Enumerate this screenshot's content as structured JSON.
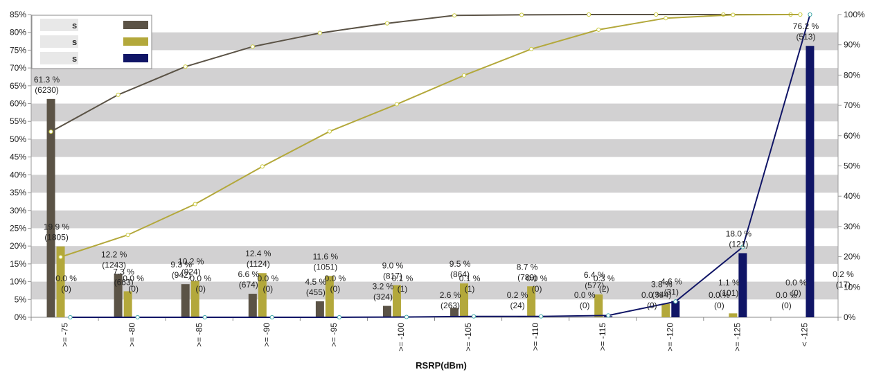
{
  "chart_data": {
    "type": "bar",
    "xlabel": "RSRP(dBm)",
    "ylabel": "",
    "ylim": [
      0,
      85
    ],
    "y_ticks": [
      "0%",
      "5%",
      "10%",
      "15%",
      "20%",
      "25%",
      "30%",
      "35%",
      "40%",
      "45%",
      "50%",
      "55%",
      "60%",
      "65%",
      "70%",
      "75%",
      "80%",
      "85%"
    ],
    "y2lim": [
      0,
      100
    ],
    "y2_ticks": [
      "0%",
      "10%",
      "20%",
      "30%",
      "40%",
      "50%",
      "60%",
      "70%",
      "80%",
      "90%",
      "100%"
    ],
    "categories": [
      ">= -75",
      ">= -80",
      ">= -85",
      ">= -90",
      ">= -95",
      ">= -100",
      ">= -105",
      ">= -110",
      ">= -115",
      ">= -120",
      ">= -125",
      "< -125"
    ],
    "grid": "alternating horizontal bands",
    "legend_position": "top-left",
    "legend_labels": [
      "s",
      "s",
      "s"
    ],
    "series": [
      {
        "color": "#5b5346",
        "values": [
          61.3,
          12.2,
          9.3,
          6.6,
          4.5,
          3.2,
          2.6,
          0.2,
          0.0,
          0.0,
          0.0,
          0.0
        ],
        "labels": [
          [
            "61.3 %",
            "(6230)"
          ],
          [
            "12.2 %",
            "(1243)"
          ],
          [
            "9.3 %",
            "(942)"
          ],
          [
            "6.6 %",
            "(674)"
          ],
          [
            "4.5 %",
            "(455)"
          ],
          [
            "3.2 %",
            "(324)"
          ],
          [
            "2.6 %",
            "(263)"
          ],
          [
            "0.2 %",
            "(24)"
          ],
          [
            "0.0 %",
            "(0)"
          ],
          [
            "0.0 %",
            "(0)"
          ],
          [
            "0.0 %",
            "(0)"
          ],
          [
            "0.0 %",
            "(0)"
          ]
        ],
        "cumulative": [
          61.3,
          73.5,
          82.8,
          89.4,
          93.9,
          97.1,
          99.7,
          99.9,
          100,
          100,
          100,
          100
        ]
      },
      {
        "color": "#b3a83b",
        "values": [
          19.9,
          7.3,
          10.2,
          12.4,
          11.6,
          9.0,
          9.5,
          8.7,
          6.4,
          3.8,
          1.1,
          0.0
        ],
        "labels": [
          [
            "19.9 %",
            "(1805)"
          ],
          [
            "7.3 %",
            "(663)"
          ],
          [
            "10.2 %",
            "(924)"
          ],
          [
            "12.4 %",
            "(1124)"
          ],
          [
            "11.6 %",
            "(1051)"
          ],
          [
            "9.0 %",
            "(817)"
          ],
          [
            "9.5 %",
            "(864)"
          ],
          [
            "8.7 %",
            "(789)"
          ],
          [
            "6.4 %",
            "(577)"
          ],
          [
            "3.8 %",
            "(344)"
          ],
          [
            "1.1 %",
            "(101)"
          ],
          [
            "0.0 %",
            "(0)"
          ]
        ],
        "cumulative": [
          19.9,
          27.2,
          37.4,
          49.8,
          61.4,
          70.4,
          79.9,
          88.6,
          95.0,
          98.8,
          99.9,
          100
        ]
      },
      {
        "color": "#101566",
        "values": [
          0.0,
          0.0,
          0.0,
          0.0,
          0.0,
          0.1,
          0.1,
          0.0,
          0.3,
          4.6,
          18.0,
          76.2
        ],
        "labels": [
          [
            "0.0 %",
            "(0)"
          ],
          [
            "0.0 %",
            "(0)"
          ],
          [
            "0.0 %",
            "(0)"
          ],
          [
            "0.0 %",
            "(0)"
          ],
          [
            "0.0 %",
            "(0)"
          ],
          [
            "0.1 %",
            "(1)"
          ],
          [
            "0.1 %",
            "(1)"
          ],
          [
            "0.0 %",
            "(0)"
          ],
          [
            "0.3 %",
            "(2)"
          ],
          [
            "4.6 %",
            "(31)"
          ],
          [
            "18.0 %",
            "(121)"
          ],
          [
            "76.2 %",
            "(513)"
          ]
        ],
        "cumulative": [
          0.0,
          0.0,
          0.0,
          0.0,
          0.0,
          0.1,
          0.3,
          0.3,
          0.6,
          5.2,
          23.2,
          100
        ]
      },
      {
        "color": "#b3a83b",
        "labels": [
          [],
          [],
          [],
          [],
          [],
          [],
          [],
          [],
          [],
          [],
          [],
          [
            "0.2 %",
            "(17)"
          ]
        ]
      }
    ]
  }
}
